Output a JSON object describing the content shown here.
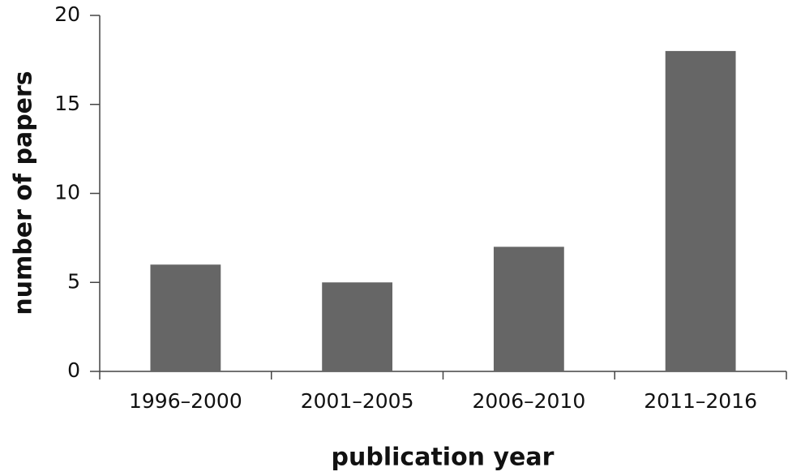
{
  "chart_data": {
    "type": "bar",
    "x_label": "publication year",
    "y_label": "number of papers",
    "categories": [
      "1996–2000",
      "2001–2005",
      "2006–2010",
      "2011–2016"
    ],
    "values": [
      6,
      5,
      7,
      18
    ],
    "color": "#666666",
    "ylim": [
      0,
      20
    ],
    "yticks": [
      0,
      5,
      10,
      15,
      20
    ],
    "grid": false
  }
}
